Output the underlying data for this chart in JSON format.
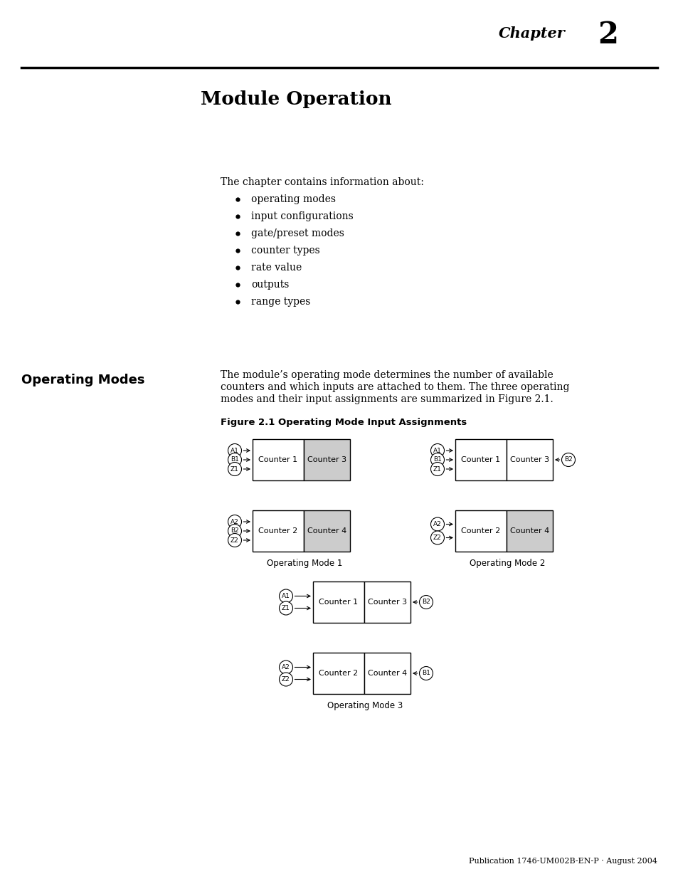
{
  "page_bg": "#ffffff",
  "chapter_label": "Chapter",
  "chapter_number": "2",
  "section_title": "Module Operation",
  "intro_text": "The chapter contains information about:",
  "bullet_items": [
    "operating modes",
    "input configurations",
    "gate/preset modes",
    "counter types",
    "rate value",
    "outputs",
    "range types"
  ],
  "sidebar_title": "Operating Modes",
  "body_text_lines": [
    "The module’s operating mode determines the number of available",
    "counters and which inputs are attached to them. The three operating",
    "modes and their input assignments are summarized in Figure 2.1."
  ],
  "figure_caption": "Figure 2.1 Operating Mode Input Assignments",
  "footer_text": "Publication 1746-UM002B-EN-P · August 2004",
  "gray_fill": "#cccccc",
  "white_fill": "#ffffff",
  "black": "#000000"
}
